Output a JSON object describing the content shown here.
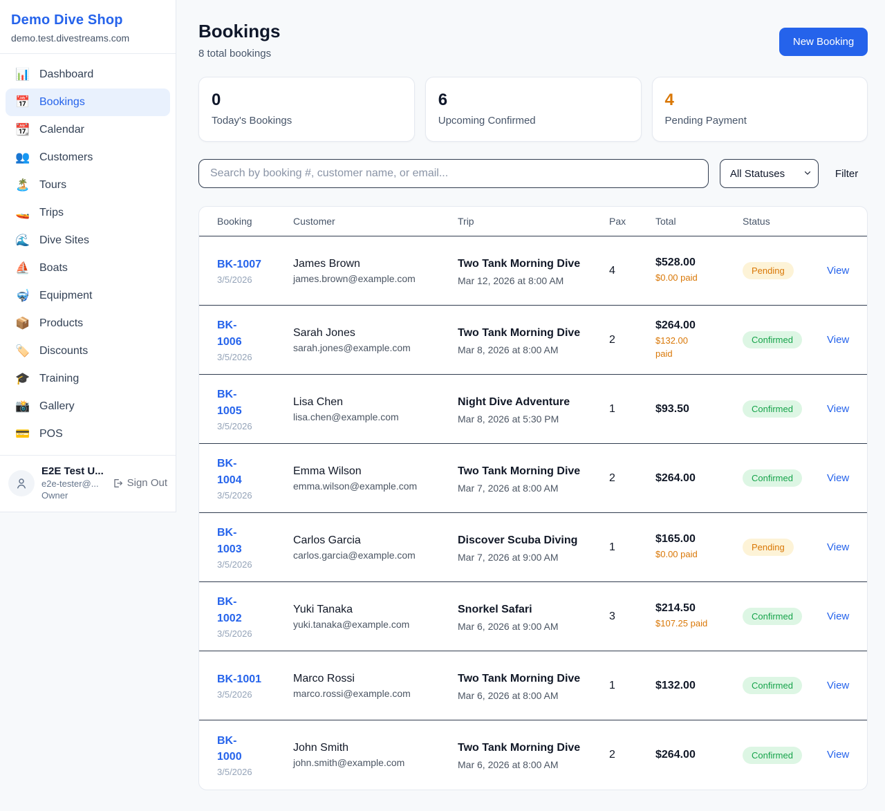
{
  "brand": {
    "name": "Demo Dive Shop",
    "domain": "demo.test.divestreams.com"
  },
  "sidebar": {
    "items": [
      {
        "icon": "📊",
        "icon_name": "bar-chart-icon",
        "label": "Dashboard",
        "active": false
      },
      {
        "icon": "📅",
        "icon_name": "calendar-17-icon",
        "label": "Bookings",
        "active": true
      },
      {
        "icon": "📆",
        "icon_name": "tear-off-calendar-icon",
        "label": "Calendar",
        "active": false
      },
      {
        "icon": "👥",
        "icon_name": "people-icon",
        "label": "Customers",
        "active": false
      },
      {
        "icon": "🏝️",
        "icon_name": "island-icon",
        "label": "Tours",
        "active": false
      },
      {
        "icon": "🚤",
        "icon_name": "speedboat-icon",
        "label": "Trips",
        "active": false
      },
      {
        "icon": "🌊",
        "icon_name": "wave-icon",
        "label": "Dive Sites",
        "active": false
      },
      {
        "icon": "⛵",
        "icon_name": "sailboat-icon",
        "label": "Boats",
        "active": false
      },
      {
        "icon": "🤿",
        "icon_name": "diving-mask-icon",
        "label": "Equipment",
        "active": false
      },
      {
        "icon": "📦",
        "icon_name": "package-icon",
        "label": "Products",
        "active": false
      },
      {
        "icon": "🏷️",
        "icon_name": "tag-icon",
        "label": "Discounts",
        "active": false
      },
      {
        "icon": "🎓",
        "icon_name": "graduation-cap-icon",
        "label": "Training",
        "active": false
      },
      {
        "icon": "📸",
        "icon_name": "camera-icon",
        "label": "Gallery",
        "active": false
      },
      {
        "icon": "💳",
        "icon_name": "credit-card-icon",
        "label": "POS",
        "active": false
      }
    ]
  },
  "user": {
    "name": "E2E Test U...",
    "email": "e2e-tester@...",
    "role": "Owner",
    "sign_out_label": "Sign Out"
  },
  "header": {
    "title": "Bookings",
    "subtitle": "8 total bookings",
    "new_booking_label": "New Booking"
  },
  "stats": [
    {
      "value": "0",
      "label": "Today's Bookings",
      "value_color": "#0f172a"
    },
    {
      "value": "6",
      "label": "Upcoming Confirmed",
      "value_color": "#0f172a"
    },
    {
      "value": "4",
      "label": "Pending Payment",
      "value_color": "#d97706"
    }
  ],
  "filters": {
    "search_placeholder": "Search by booking #, customer name, or email...",
    "status_selected": "All Statuses",
    "filter_label": "Filter"
  },
  "table": {
    "columns": [
      "Booking",
      "Customer",
      "Trip",
      "Pax",
      "Total",
      "Status"
    ],
    "view_label": "View",
    "rows": [
      {
        "booking_number": "BK-1007",
        "booking_date": "3/5/2026",
        "customer_name": "James Brown",
        "customer_email": "james.brown@example.com",
        "trip_name": "Two Tank Morning Dive",
        "trip_datetime": "Mar 12, 2026 at 8:00 AM",
        "pax": "4",
        "total": "$528.00",
        "paid": "$0.00 paid",
        "status": "Pending"
      },
      {
        "booking_number": "BK-\n1006",
        "booking_date": "3/5/2026",
        "customer_name": "Sarah Jones",
        "customer_email": "sarah.jones@example.com",
        "trip_name": "Two Tank Morning Dive",
        "trip_datetime": "Mar 8, 2026 at 8:00 AM",
        "pax": "2",
        "total": "$264.00",
        "paid": "$132.00\npaid",
        "status": "Confirmed"
      },
      {
        "booking_number": "BK-\n1005",
        "booking_date": "3/5/2026",
        "customer_name": "Lisa Chen",
        "customer_email": "lisa.chen@example.com",
        "trip_name": "Night Dive Adventure",
        "trip_datetime": "Mar 8, 2026 at 5:30 PM",
        "pax": "1",
        "total": "$93.50",
        "paid": null,
        "status": "Confirmed"
      },
      {
        "booking_number": "BK-\n1004",
        "booking_date": "3/5/2026",
        "customer_name": "Emma Wilson",
        "customer_email": "emma.wilson@example.com",
        "trip_name": "Two Tank Morning Dive",
        "trip_datetime": "Mar 7, 2026 at 8:00 AM",
        "pax": "2",
        "total": "$264.00",
        "paid": null,
        "status": "Confirmed"
      },
      {
        "booking_number": "BK-\n1003",
        "booking_date": "3/5/2026",
        "customer_name": "Carlos Garcia",
        "customer_email": "carlos.garcia@example.com",
        "trip_name": "Discover Scuba Diving",
        "trip_datetime": "Mar 7, 2026 at 9:00 AM",
        "pax": "1",
        "total": "$165.00",
        "paid": "$0.00 paid",
        "status": "Pending"
      },
      {
        "booking_number": "BK-\n1002",
        "booking_date": "3/5/2026",
        "customer_name": "Yuki Tanaka",
        "customer_email": "yuki.tanaka@example.com",
        "trip_name": "Snorkel Safari",
        "trip_datetime": "Mar 6, 2026 at 9:00 AM",
        "pax": "3",
        "total": "$214.50",
        "paid": "$107.25 paid",
        "status": "Confirmed"
      },
      {
        "booking_number": "BK-1001",
        "booking_date": "3/5/2026",
        "customer_name": "Marco Rossi",
        "customer_email": "marco.rossi@example.com",
        "trip_name": "Two Tank Morning Dive",
        "trip_datetime": "Mar 6, 2026 at 8:00 AM",
        "pax": "1",
        "total": "$132.00",
        "paid": null,
        "status": "Confirmed"
      },
      {
        "booking_number": "BK-\n1000",
        "booking_date": "3/5/2026",
        "customer_name": "John Smith",
        "customer_email": "john.smith@example.com",
        "trip_name": "Two Tank Morning Dive",
        "trip_datetime": "Mar 6, 2026 at 8:00 AM",
        "pax": "2",
        "total": "$264.00",
        "paid": null,
        "status": "Confirmed"
      }
    ]
  },
  "colors": {
    "accent_blue": "#2563eb",
    "pending_text": "#d97706",
    "pending_bg": "#fdf3d7",
    "confirmed_text": "#16a34a",
    "confirmed_bg": "#ddf6e4",
    "page_bg": "#f7f9fb"
  }
}
